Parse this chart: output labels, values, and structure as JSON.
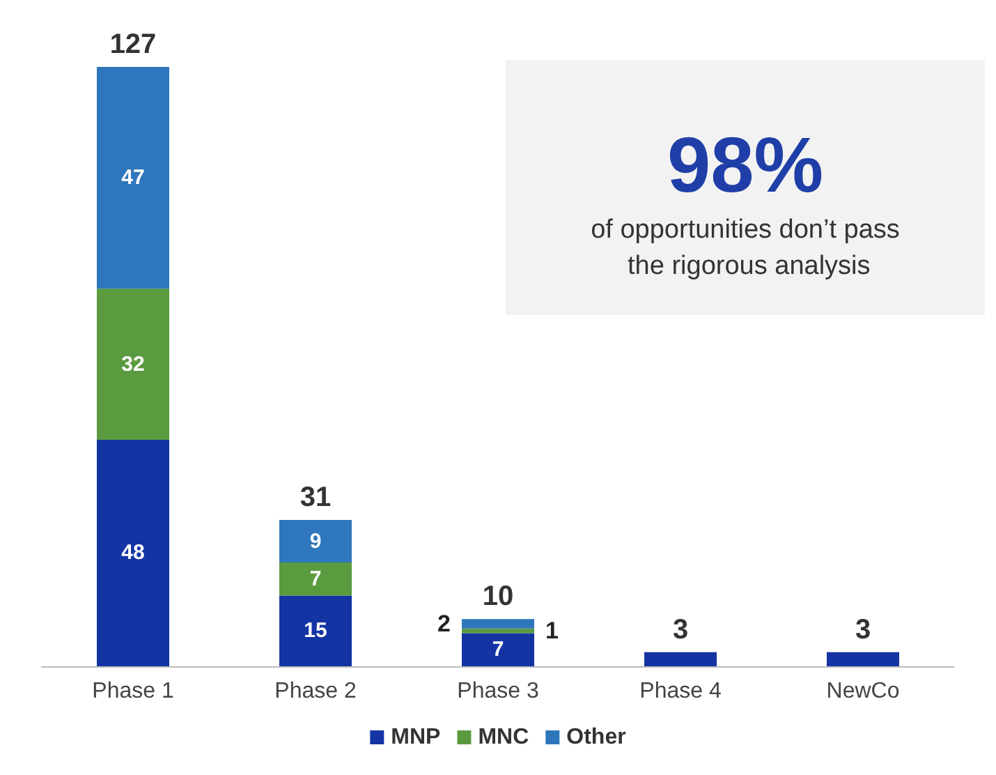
{
  "chart_data": {
    "type": "bar",
    "stacked": true,
    "categories": [
      "Phase 1",
      "Phase 2",
      "Phase 3",
      "Phase 4",
      "NewCo"
    ],
    "series": [
      {
        "name": "MNP",
        "color": "#1434a4",
        "values": [
          48,
          15,
          7,
          3,
          3
        ],
        "value_labels": [
          "48",
          "15",
          "7",
          null,
          null
        ]
      },
      {
        "name": "MNC",
        "color": "#5b9b3f",
        "values": [
          32,
          7,
          1,
          null,
          null
        ],
        "value_labels": [
          "32",
          "7",
          "1",
          null,
          null
        ]
      },
      {
        "name": "Other",
        "color": "#2e77bc",
        "values": [
          47,
          9,
          2,
          null,
          null
        ],
        "value_labels": [
          "47",
          "9",
          "2",
          null,
          null
        ]
      }
    ],
    "totals": [
      "127",
      "31",
      "10",
      "3",
      "3"
    ],
    "legend": "bottom",
    "annotations": [
      "98%",
      "of opportunities don’t pass the rigorous analysis"
    ]
  }
}
